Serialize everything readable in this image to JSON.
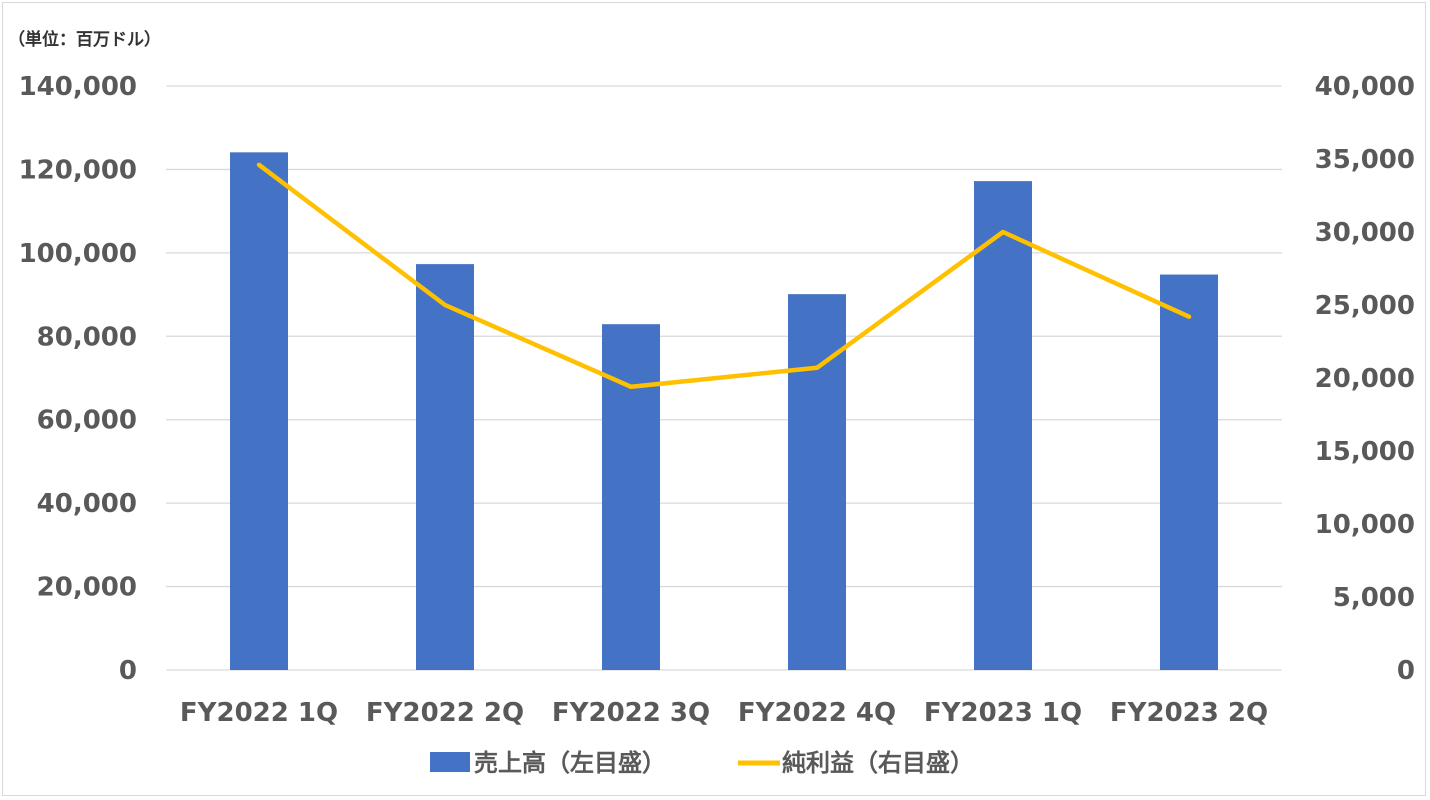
{
  "unit_label": "（単位：百万ドル）",
  "colors": {
    "bar": "#4472c4",
    "line": "#ffc000",
    "grid": "#d9d9d9",
    "axis_text": "#595959"
  },
  "legend": {
    "bar_label": "売上高（左目盛）",
    "line_label": "純利益（右目盛）"
  },
  "chart_data": {
    "type": "bar",
    "categories": [
      "FY2022 1Q",
      "FY2022 2Q",
      "FY2022 3Q",
      "FY2022 4Q",
      "FY2023 1Q",
      "FY2023 2Q"
    ],
    "series": [
      {
        "name": "売上高（左目盛）",
        "type": "bar",
        "axis": "left",
        "values": [
          124100,
          97300,
          82900,
          90100,
          117200,
          94800
        ]
      },
      {
        "name": "純利益（右目盛）",
        "type": "line",
        "axis": "right",
        "values": [
          34600,
          25000,
          19400,
          20700,
          30000,
          24200
        ]
      }
    ],
    "y_left": {
      "ylim": [
        0,
        140000
      ],
      "ticks": [
        "0",
        "20,000",
        "40,000",
        "60,000",
        "80,000",
        "100,000",
        "120,000",
        "140,000"
      ]
    },
    "y_right": {
      "ylim": [
        0,
        40000
      ],
      "ticks": [
        "0",
        "5,000",
        "10,000",
        "15,000",
        "20,000",
        "25,000",
        "30,000",
        "35,000",
        "40,000"
      ]
    },
    "grid": true,
    "legend_position": "bottom"
  }
}
